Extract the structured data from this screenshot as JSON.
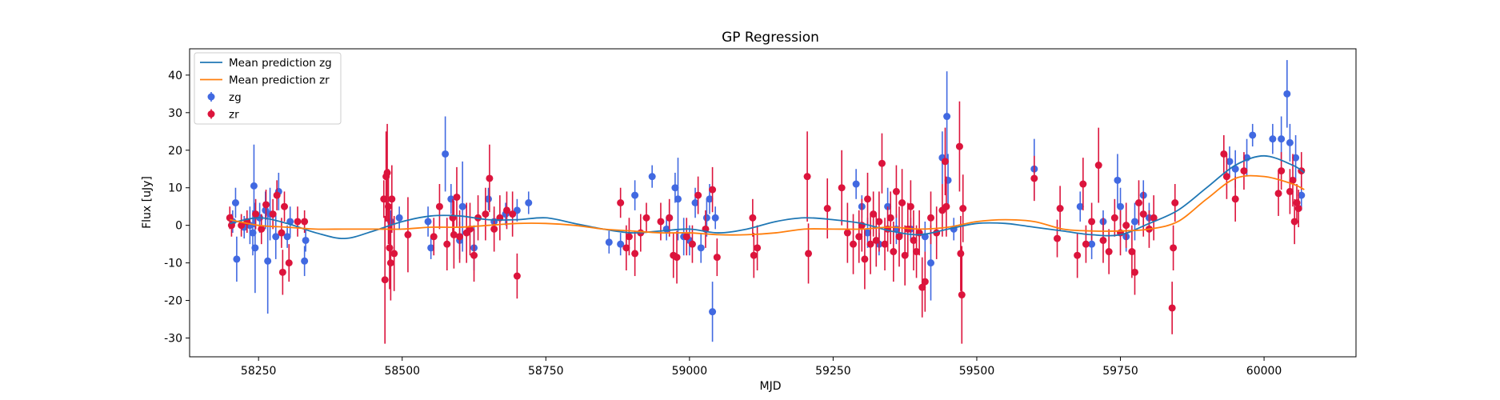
{
  "chart_data": {
    "type": "scatter",
    "title": "GP Regression",
    "xlabel": "MJD",
    "ylabel": "Flux [uJy]",
    "xlim": [
      58130,
      60160
    ],
    "ylim": [
      -35,
      47
    ],
    "xticks": [
      58250,
      58500,
      58750,
      59000,
      59250,
      59500,
      59750,
      60000
    ],
    "yticks": [
      -30,
      -20,
      -10,
      0,
      10,
      20,
      30,
      40
    ],
    "grid": false,
    "legend_position": "top-left",
    "series": [
      {
        "name": "Mean prediction zg",
        "kind": "line",
        "color": "#1f77b4",
        "x": [
          58200,
          58250,
          58300,
          58350,
          58400,
          58450,
          58500,
          58550,
          58600,
          58650,
          58700,
          58750,
          58800,
          58850,
          58900,
          58950,
          59000,
          59050,
          59100,
          59150,
          59200,
          59250,
          59300,
          59350,
          59400,
          59450,
          59500,
          59550,
          59600,
          59650,
          59700,
          59750,
          59800,
          59850,
          59900,
          59950,
          60000,
          60050,
          60070
        ],
        "y": [
          0.5,
          2,
          0.5,
          -2,
          -3.5,
          -1.5,
          1,
          2.5,
          2.5,
          1.5,
          1.5,
          2,
          0.5,
          -1,
          -2,
          -1.5,
          -1,
          -2,
          -1,
          1,
          2,
          1.5,
          0.5,
          -1.5,
          -2.5,
          -1,
          0.5,
          0.5,
          -0.5,
          -1.5,
          -2.5,
          -2.5,
          0.5,
          4,
          10,
          16,
          18.5,
          16,
          14
        ]
      },
      {
        "name": "Mean prediction zr",
        "kind": "line",
        "color": "#ff7f0e",
        "x": [
          58200,
          58250,
          58300,
          58350,
          58400,
          58450,
          58500,
          58550,
          58600,
          58650,
          58700,
          58750,
          58800,
          58850,
          58900,
          58950,
          59000,
          59050,
          59100,
          59150,
          59200,
          59250,
          59300,
          59350,
          59400,
          59450,
          59500,
          59550,
          59600,
          59650,
          59700,
          59750,
          59800,
          59850,
          59900,
          59950,
          60000,
          60050,
          60070
        ],
        "y": [
          1.5,
          0,
          -0.5,
          -1,
          -1,
          -1,
          -1,
          -0.5,
          -0.5,
          0,
          0.5,
          0.5,
          0,
          -1,
          -1.5,
          -2,
          -2,
          -2.5,
          -2.5,
          -2,
          -1,
          -1,
          -1,
          -0.5,
          -1,
          -0.5,
          1,
          1.5,
          1,
          -1,
          -1.5,
          -1.5,
          -1,
          1,
          7,
          12.5,
          13,
          11,
          9.5
        ]
      },
      {
        "name": "zg",
        "kind": "errorbar",
        "color": "#4169e1",
        "points": [
          [
            58205,
            1,
            3
          ],
          [
            58210,
            6,
            4
          ],
          [
            58212,
            -9,
            6
          ],
          [
            58225,
            -0.5,
            3
          ],
          [
            58235,
            0,
            5
          ],
          [
            58240,
            -2,
            6
          ],
          [
            58242,
            10.5,
            11
          ],
          [
            58244,
            -6,
            12
          ],
          [
            58252,
            2,
            4
          ],
          [
            58262,
            4,
            5
          ],
          [
            58266,
            -9.5,
            14
          ],
          [
            58270,
            3,
            7
          ],
          [
            58280,
            -3,
            6
          ],
          [
            58285,
            9,
            5
          ],
          [
            58300,
            -3,
            3
          ],
          [
            58305,
            1,
            4
          ],
          [
            58330,
            -9.5,
            4
          ],
          [
            58332,
            -4,
            3
          ],
          [
            58480,
            1,
            3
          ],
          [
            58495,
            2,
            3
          ],
          [
            58545,
            1,
            4
          ],
          [
            58550,
            -6,
            3
          ],
          [
            58575,
            19,
            10
          ],
          [
            58585,
            7,
            4
          ],
          [
            58600,
            -4,
            5
          ],
          [
            58605,
            5,
            12
          ],
          [
            58625,
            -6,
            6
          ],
          [
            58650,
            7,
            3
          ],
          [
            58660,
            1,
            3
          ],
          [
            58680,
            3,
            3
          ],
          [
            58700,
            4,
            3
          ],
          [
            58720,
            6,
            3
          ],
          [
            58860,
            -4.5,
            3
          ],
          [
            58880,
            -5,
            3
          ],
          [
            58905,
            8,
            4
          ],
          [
            58935,
            13,
            3
          ],
          [
            58960,
            -1,
            3
          ],
          [
            58965,
            2,
            4
          ],
          [
            58975,
            10,
            4
          ],
          [
            58980,
            7,
            11
          ],
          [
            58990,
            -3,
            5
          ],
          [
            59000,
            -4,
            4
          ],
          [
            59010,
            6,
            4
          ],
          [
            59020,
            -6,
            4
          ],
          [
            59030,
            2,
            5
          ],
          [
            59035,
            7,
            4
          ],
          [
            59040,
            -23,
            8
          ],
          [
            59045,
            2,
            3
          ],
          [
            59290,
            11,
            4
          ],
          [
            59300,
            5,
            3
          ],
          [
            59310,
            -2,
            4
          ],
          [
            59330,
            -5,
            3
          ],
          [
            59345,
            5,
            5
          ],
          [
            59360,
            -1,
            4
          ],
          [
            59385,
            -1,
            3
          ],
          [
            59410,
            -3,
            4
          ],
          [
            59420,
            -10,
            10
          ],
          [
            59440,
            18,
            7
          ],
          [
            59448,
            29,
            12
          ],
          [
            59450,
            12,
            7
          ],
          [
            59460,
            -1,
            3
          ],
          [
            59600,
            15,
            8
          ],
          [
            59680,
            5,
            4
          ],
          [
            59700,
            -5,
            4
          ],
          [
            59720,
            1,
            3
          ],
          [
            59745,
            12,
            7
          ],
          [
            59750,
            5,
            5
          ],
          [
            59760,
            -3,
            4
          ],
          [
            59775,
            1,
            5
          ],
          [
            59790,
            8,
            4
          ],
          [
            59800,
            2,
            4
          ],
          [
            59940,
            17,
            4
          ],
          [
            59950,
            15,
            5
          ],
          [
            59970,
            18,
            5
          ],
          [
            59980,
            24,
            3
          ],
          [
            60015,
            23,
            4
          ],
          [
            60030,
            23,
            6
          ],
          [
            60040,
            35,
            9
          ],
          [
            60045,
            22,
            5
          ],
          [
            60055,
            18,
            6
          ],
          [
            60065,
            8,
            4
          ]
        ]
      },
      {
        "name": "zr",
        "kind": "errorbar",
        "color": "#dc143c",
        "points": [
          [
            58200,
            2,
            3
          ],
          [
            58203,
            0,
            3
          ],
          [
            58220,
            0,
            3
          ],
          [
            58230,
            1,
            3
          ],
          [
            58245,
            3,
            4
          ],
          [
            58255,
            -1,
            4
          ],
          [
            58263,
            5.5,
            4
          ],
          [
            58275,
            3,
            4
          ],
          [
            58282,
            8,
            4
          ],
          [
            58290,
            -2,
            4
          ],
          [
            58292,
            -12.5,
            6
          ],
          [
            58295,
            5,
            4
          ],
          [
            58303,
            -10,
            5
          ],
          [
            58318,
            1,
            4
          ],
          [
            58330,
            1,
            3
          ],
          [
            58468,
            7,
            5
          ],
          [
            58470,
            -14.5,
            17
          ],
          [
            58472,
            13,
            12
          ],
          [
            58474,
            14,
            13
          ],
          [
            58476,
            5,
            10
          ],
          [
            58478,
            -6,
            11
          ],
          [
            58480,
            -10,
            10
          ],
          [
            58482,
            7,
            9
          ],
          [
            58486,
            -7.5,
            10
          ],
          [
            58510,
            -2.5,
            10
          ],
          [
            58555,
            -3,
            5
          ],
          [
            58565,
            5,
            6
          ],
          [
            58578,
            -5,
            7
          ],
          [
            58588,
            2,
            5
          ],
          [
            58590,
            -2.5,
            9
          ],
          [
            58595,
            7.5,
            8
          ],
          [
            58600,
            -3,
            7
          ],
          [
            58612,
            -2,
            8
          ],
          [
            58618,
            -1,
            7
          ],
          [
            58625,
            -8,
            7
          ],
          [
            58632,
            2,
            6
          ],
          [
            58645,
            3,
            7
          ],
          [
            58652,
            12.5,
            9
          ],
          [
            58660,
            -1,
            6
          ],
          [
            58670,
            2,
            6
          ],
          [
            58682,
            4,
            5
          ],
          [
            58692,
            3,
            6
          ],
          [
            58700,
            -13.5,
            6
          ],
          [
            58880,
            6,
            4
          ],
          [
            58890,
            -6,
            6
          ],
          [
            58895,
            -3,
            5
          ],
          [
            58905,
            -7.5,
            6
          ],
          [
            58915,
            -2,
            5
          ],
          [
            58925,
            2,
            4
          ],
          [
            58950,
            1,
            5
          ],
          [
            58965,
            2,
            5
          ],
          [
            58972,
            -8,
            6
          ],
          [
            58978,
            -8.5,
            7
          ],
          [
            58995,
            -3,
            5
          ],
          [
            59005,
            -5,
            5
          ],
          [
            59015,
            8,
            5
          ],
          [
            59028,
            -1,
            5
          ],
          [
            59040,
            9.5,
            6
          ],
          [
            59048,
            -8.5,
            5
          ],
          [
            59110,
            2,
            5
          ],
          [
            59112,
            -8,
            6
          ],
          [
            59118,
            -6,
            6
          ],
          [
            59205,
            13,
            12
          ],
          [
            59207,
            -7.5,
            8
          ],
          [
            59240,
            4.5,
            8
          ],
          [
            59265,
            10,
            10
          ],
          [
            59275,
            -2,
            8
          ],
          [
            59285,
            -5,
            8
          ],
          [
            59295,
            -3,
            7
          ],
          [
            59300,
            0,
            7
          ],
          [
            59305,
            -9,
            8
          ],
          [
            59310,
            7,
            7
          ],
          [
            59315,
            -5,
            8
          ],
          [
            59320,
            3,
            6
          ],
          [
            59325,
            -4,
            7
          ],
          [
            59330,
            1,
            8
          ],
          [
            59335,
            16.5,
            8
          ],
          [
            59340,
            -5,
            7
          ],
          [
            59345,
            -1,
            6
          ],
          [
            59350,
            2,
            7
          ],
          [
            59355,
            -7,
            8
          ],
          [
            59360,
            9,
            7
          ],
          [
            59365,
            -3,
            8
          ],
          [
            59370,
            6,
            9
          ],
          [
            59375,
            -8,
            8
          ],
          [
            59380,
            -1,
            7
          ],
          [
            59385,
            5,
            7
          ],
          [
            59390,
            -4,
            8
          ],
          [
            59395,
            -7,
            7
          ],
          [
            59400,
            -2,
            6
          ],
          [
            59405,
            -16.5,
            8
          ],
          [
            59410,
            -15,
            8
          ],
          [
            59420,
            2,
            7
          ],
          [
            59430,
            -2,
            7
          ],
          [
            59440,
            4,
            7
          ],
          [
            59445,
            17,
            9
          ],
          [
            59447,
            5,
            8
          ],
          [
            59470,
            21,
            12
          ],
          [
            59472,
            -7.5,
            10
          ],
          [
            59474,
            -18.5,
            13
          ],
          [
            59476,
            4.5,
            9
          ],
          [
            59600,
            12.5,
            6
          ],
          [
            59640,
            -3.5,
            5
          ],
          [
            59645,
            4.5,
            6
          ],
          [
            59675,
            -8,
            6
          ],
          [
            59685,
            11,
            7
          ],
          [
            59690,
            -5,
            5
          ],
          [
            59700,
            1,
            5
          ],
          [
            59712,
            16,
            10
          ],
          [
            59720,
            -4,
            6
          ],
          [
            59730,
            -7,
            6
          ],
          [
            59740,
            2,
            5
          ],
          [
            59750,
            -2,
            6
          ],
          [
            59760,
            0,
            6
          ],
          [
            59770,
            -7,
            7
          ],
          [
            59775,
            -12.5,
            6
          ],
          [
            59782,
            6,
            6
          ],
          [
            59790,
            3,
            6
          ],
          [
            59800,
            -1,
            5
          ],
          [
            59808,
            2,
            6
          ],
          [
            59840,
            -22,
            7
          ],
          [
            59842,
            -6,
            6
          ],
          [
            59845,
            6,
            5
          ],
          [
            59930,
            19,
            5
          ],
          [
            59935,
            13,
            6
          ],
          [
            59950,
            7,
            6
          ],
          [
            59965,
            14.5,
            5
          ],
          [
            60025,
            8.5,
            6
          ],
          [
            60030,
            14.5,
            5
          ],
          [
            60045,
            9,
            6
          ],
          [
            60050,
            12,
            7
          ],
          [
            60053,
            1,
            6
          ],
          [
            60057,
            6,
            5
          ],
          [
            60060,
            4.5,
            5
          ],
          [
            60065,
            14.5,
            5
          ]
        ]
      }
    ]
  }
}
